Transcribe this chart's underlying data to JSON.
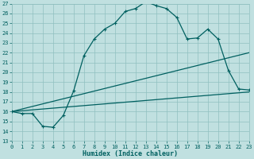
{
  "xlabel": "Humidex (Indice chaleur)",
  "bg_color": "#c0e0e0",
  "grid_color": "#90c0c0",
  "line_color": "#006060",
  "xlim": [
    0,
    23
  ],
  "ylim": [
    13,
    27
  ],
  "xticks": [
    0,
    1,
    2,
    3,
    4,
    5,
    6,
    7,
    8,
    9,
    10,
    11,
    12,
    13,
    14,
    15,
    16,
    17,
    18,
    19,
    20,
    21,
    22,
    23
  ],
  "yticks": [
    13,
    14,
    15,
    16,
    17,
    18,
    19,
    20,
    21,
    22,
    23,
    24,
    25,
    26,
    27
  ],
  "line1_x": [
    0,
    1,
    2,
    3,
    4,
    5,
    6,
    7,
    8,
    9,
    10,
    11,
    12,
    13,
    14,
    15,
    16,
    17,
    18,
    19,
    20,
    21,
    22,
    23
  ],
  "line1_y": [
    16.0,
    15.8,
    15.8,
    14.5,
    14.4,
    15.6,
    18.1,
    21.7,
    23.4,
    24.4,
    25.0,
    26.2,
    26.5,
    27.2,
    26.8,
    26.5,
    25.6,
    23.4,
    23.5,
    24.4,
    23.4,
    20.2,
    18.3,
    18.2
  ],
  "line2_x": [
    0,
    23
  ],
  "line2_y": [
    16.0,
    18.0
  ],
  "line3_x": [
    0,
    23
  ],
  "line3_y": [
    16.0,
    22.0
  ],
  "xlabel_fontsize": 6,
  "tick_fontsize": 5,
  "linewidth": 0.9,
  "marker_size": 3
}
